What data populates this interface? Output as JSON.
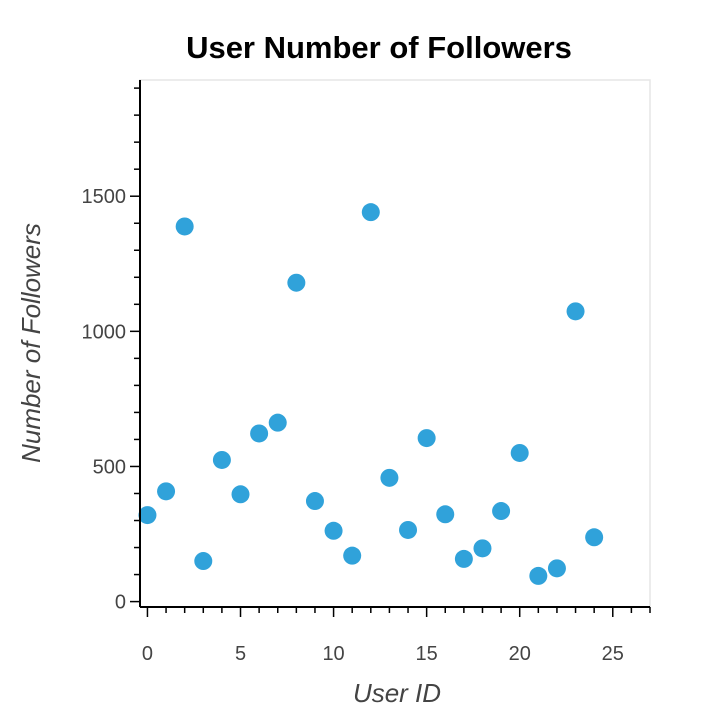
{
  "chart_data": {
    "type": "scatter",
    "title": "User Number of Followers",
    "xlabel": "User ID",
    "ylabel": "Number of Followers",
    "xlim": [
      -0.4,
      27
    ],
    "ylim": [
      -20,
      1930
    ],
    "x_ticks": [
      0,
      5,
      10,
      15,
      20,
      25
    ],
    "y_ticks": [
      0,
      500,
      1000,
      1500
    ],
    "x_minor_step": 1,
    "y_minor_step": 100,
    "marker_color": "#30a2da",
    "series": [
      {
        "x": [
          0,
          1,
          2,
          3,
          4,
          5,
          6,
          7,
          8,
          9,
          10,
          11,
          12,
          13,
          14,
          15,
          16,
          17,
          18,
          19,
          20,
          21,
          22,
          23,
          24
        ],
        "y": [
          320,
          408,
          1388,
          150,
          524,
          397,
          622,
          662,
          1180,
          372,
          262,
          170,
          1441,
          458,
          265,
          605,
          323,
          158,
          197,
          335,
          550,
          95,
          123,
          1074,
          238
        ]
      }
    ]
  }
}
